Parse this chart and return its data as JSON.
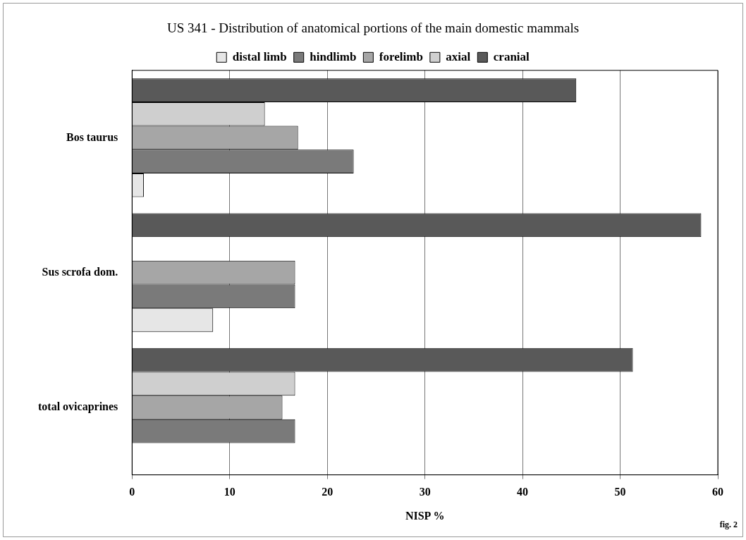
{
  "chart_data": {
    "type": "bar",
    "orientation": "horizontal",
    "title": "US 341 - Distribution of anatomical portions of the main domestic mammals",
    "xlabel": "NISP %",
    "categories": [
      "Bos taurus",
      "Sus scrofa dom.",
      "total ovicaprines"
    ],
    "series": [
      {
        "name": "distal limb",
        "color": "#e6e6e6",
        "values": [
          1.2,
          8.3,
          0
        ]
      },
      {
        "name": "hindlimb",
        "color": "#7a7a7a",
        "values": [
          22.7,
          16.7,
          16.7
        ]
      },
      {
        "name": "forelimb",
        "color": "#a6a6a6",
        "values": [
          17.0,
          16.7,
          15.4
        ]
      },
      {
        "name": "axial",
        "color": "#cfcfcf",
        "values": [
          13.6,
          0,
          16.7
        ]
      },
      {
        "name": "cranial",
        "color": "#595959",
        "values": [
          45.5,
          58.3,
          51.3
        ]
      }
    ],
    "xlim": [
      0,
      60
    ],
    "xticks": [
      0,
      10,
      20,
      30,
      40,
      50,
      60
    ],
    "grid": "x",
    "legend": "top",
    "annotations": [
      "fig. 2"
    ]
  }
}
